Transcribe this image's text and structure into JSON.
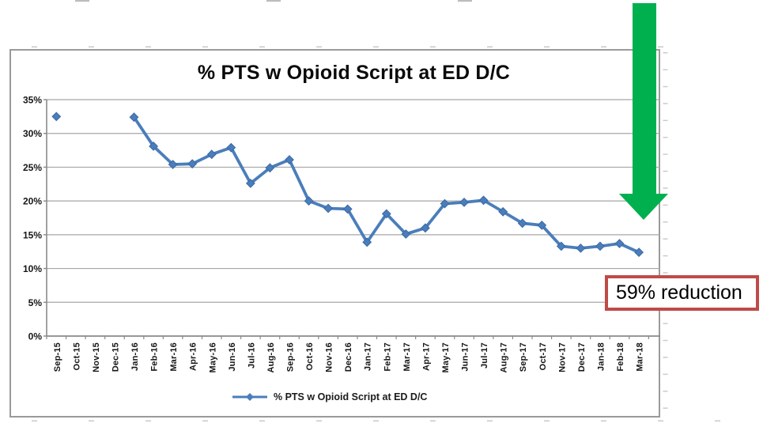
{
  "annotations": {
    "reduction_label": "59% reduction"
  },
  "legend": {
    "label": "% PTS w Opioid Script at ED D/C"
  },
  "colors": {
    "series_blue": "#4a7ebb",
    "marker_edge_blue": "#3a67a5",
    "arrow_green": "#00b04f",
    "annotation_border_red": "#be4b48",
    "gridline_gray": "#a6a6a6",
    "axis_gray": "#8a8a8a",
    "chart_border_gray": "#9a9a9a"
  },
  "chart_data": {
    "type": "line",
    "title": "% PTS w Opioid Script at ED D/C",
    "xlabel": "",
    "ylabel": "",
    "ylim": [
      0,
      35
    ],
    "y_tick_step": 5,
    "grid": true,
    "legend_position": "bottom",
    "marker": "diamond",
    "y_ticks": [
      "0%",
      "5%",
      "10%",
      "15%",
      "20%",
      "25%",
      "30%",
      "35%"
    ],
    "categories": [
      "Sep-15",
      "Oct-15",
      "Nov-15",
      "Dec-15",
      "Jan-16",
      "Feb-16",
      "Mar-16",
      "Apr-16",
      "May-16",
      "Jun-16",
      "Jul-16",
      "Aug-16",
      "Sep-16",
      "Oct-16",
      "Nov-16",
      "Dec-16",
      "Jan-17",
      "Feb-17",
      "Mar-17",
      "Apr-17",
      "May-17",
      "Jun-17",
      "Jul-17",
      "Aug-17",
      "Sep-17",
      "Oct-17",
      "Nov-17",
      "Dec-17",
      "Jan-18",
      "Feb-18",
      "Mar-18"
    ],
    "series": [
      {
        "name": "% PTS w Opioid Script at ED D/C",
        "values": [
          32.5,
          null,
          null,
          null,
          32.4,
          28.1,
          25.4,
          25.5,
          26.9,
          27.9,
          22.6,
          24.9,
          26.1,
          20.0,
          18.9,
          18.8,
          13.9,
          18.1,
          15.1,
          16.0,
          19.6,
          19.8,
          20.1,
          18.4,
          16.7,
          16.4,
          13.3,
          13.0,
          13.3,
          13.7,
          12.4
        ]
      }
    ]
  }
}
